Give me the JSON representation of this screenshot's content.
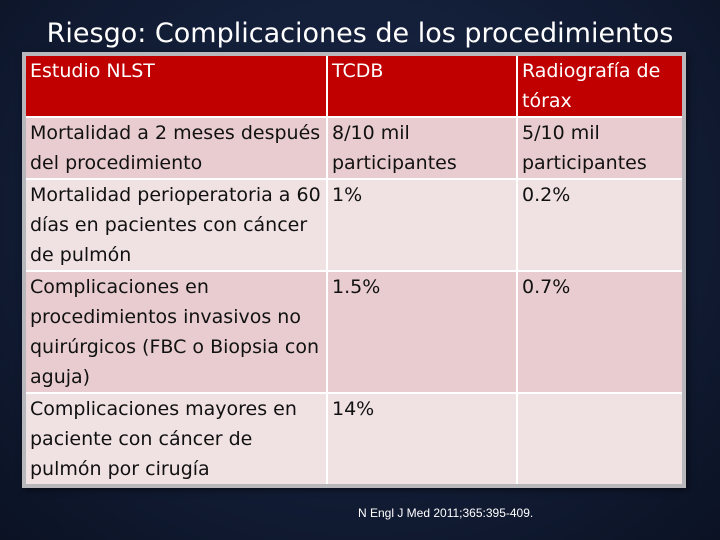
{
  "slide": {
    "title": "Riesgo: Complicaciones de los procedimientos"
  },
  "table": {
    "headers": [
      "Estudio NLST",
      "TCDB",
      "Radiografía de tórax"
    ],
    "rows": [
      [
        "Mortalidad a 2 meses después del  procedimiento",
        "8/10 mil participantes",
        "5/10 mil participantes"
      ],
      [
        "Mortalidad perioperatoria a 60 días en pacientes con cáncer de pulmón",
        "1%",
        "0.2%"
      ],
      [
        "Complicaciones en procedimientos invasivos no quirúrgicos (FBC o Biopsia con aguja)",
        "1.5%",
        "0.7%"
      ],
      [
        "Complicaciones mayores en paciente con cáncer de pulmón por cirugía",
        "14%",
        ""
      ]
    ]
  },
  "citation": "N Engl J Med 2011;365:395-409.",
  "colors": {
    "background": "#121d36",
    "header": "#c00000",
    "row_dark": "#e8cccf",
    "row_light": "#f0e1e3"
  }
}
